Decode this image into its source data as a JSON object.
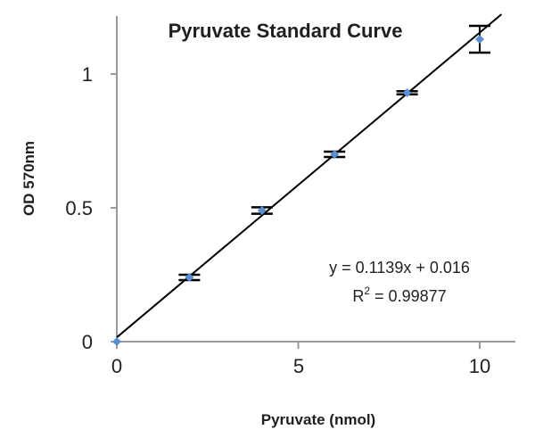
{
  "chart_data": {
    "type": "scatter",
    "title": "Pyruvate Standard Curve",
    "xlabel": "Pyruvate (nmol)",
    "ylabel": "OD 570nm",
    "xlim": [
      0,
      11
    ],
    "ylim": [
      0,
      1.2
    ],
    "x_ticks": [
      "0",
      "5",
      "10"
    ],
    "y_ticks": [
      "0",
      "0.5",
      "1"
    ],
    "series": [
      {
        "x": [
          0,
          2,
          4,
          6,
          8,
          10
        ],
        "y": [
          0.0,
          0.24,
          0.49,
          0.7,
          0.93,
          1.13
        ],
        "error": [
          0.0,
          0.01,
          0.012,
          0.01,
          0.006,
          0.05
        ],
        "marker_color": "#5b8fcf"
      }
    ],
    "trendline": {
      "slope": 0.1139,
      "intercept": 0.016,
      "color": "#000000",
      "equation": "y = 0.1139x + 0.016",
      "r2_prefix": "R",
      "r2_sup": "2",
      "r2_value": " = 0.99877"
    },
    "grid": false,
    "legend": "none"
  }
}
